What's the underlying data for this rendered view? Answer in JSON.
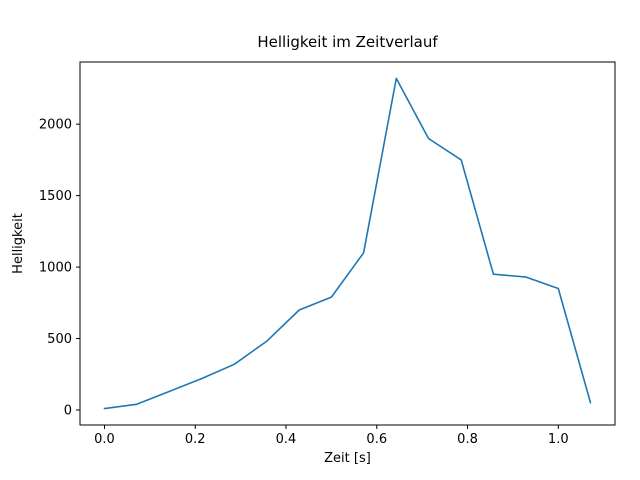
{
  "figure": {
    "background": "#ffffff"
  },
  "chart_data": {
    "type": "line",
    "title": "Helligkeit im Zeitverlauf",
    "xlabel": "Zeit [s]",
    "ylabel": "Helligkeit",
    "x": [
      0.0,
      0.071,
      0.143,
      0.214,
      0.286,
      0.357,
      0.429,
      0.5,
      0.571,
      0.643,
      0.714,
      0.786,
      0.857,
      0.929,
      1.0,
      1.071
    ],
    "y": [
      10,
      40,
      130,
      220,
      320,
      480,
      700,
      790,
      1100,
      2320,
      1900,
      1750,
      950,
      930,
      850,
      50
    ],
    "xlim": [
      -0.054,
      1.125
    ],
    "ylim": [
      -105,
      2435
    ],
    "xticks": {
      "values": [
        0.0,
        0.2,
        0.4,
        0.6,
        0.8,
        1.0
      ],
      "labels": [
        "0.0",
        "0.2",
        "0.4",
        "0.6",
        "0.8",
        "1.0"
      ]
    },
    "yticks": {
      "values": [
        0,
        500,
        1000,
        1500,
        2000
      ],
      "labels": [
        "0",
        "500",
        "1000",
        "1500",
        "2000"
      ]
    },
    "line_color": "#1f77b4",
    "axis_color": "#000000",
    "grid": false
  }
}
